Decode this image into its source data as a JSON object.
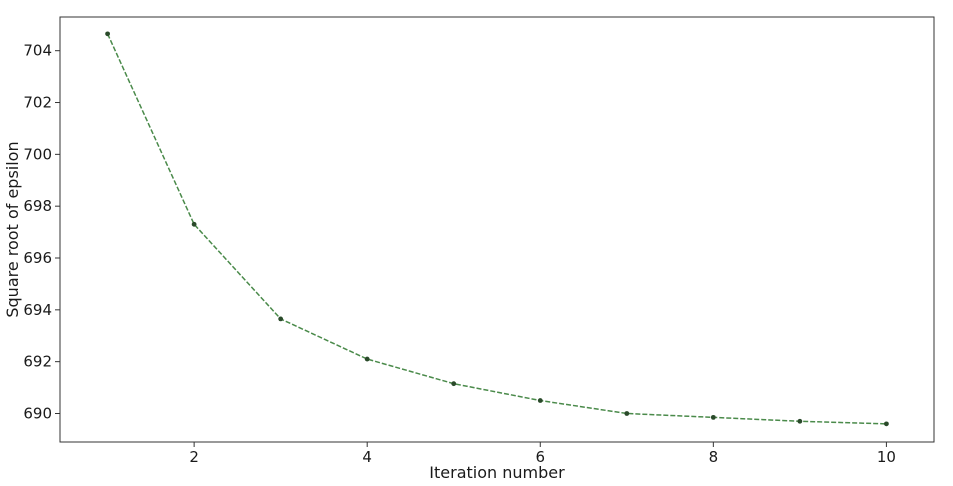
{
  "chart_data": {
    "type": "line",
    "xlabel": "Iteration number",
    "ylabel": "Square root of epsilon",
    "xlim": [
      0.45,
      10.55
    ],
    "ylim": [
      688.9,
      705.3
    ],
    "x_ticks": [
      2,
      4,
      6,
      8,
      10
    ],
    "y_ticks": [
      690,
      692,
      694,
      696,
      698,
      700,
      702,
      704
    ],
    "x_tick_labels": [
      "2",
      "4",
      "6",
      "8",
      "10"
    ],
    "y_tick_labels": [
      "690",
      "692",
      "694",
      "696",
      "698",
      "700",
      "702",
      "704"
    ],
    "grid": false,
    "legend": false,
    "series": [
      {
        "x": [
          1,
          2,
          3,
          4,
          5,
          6,
          7,
          8,
          9,
          10
        ],
        "y": [
          704.65,
          697.3,
          693.65,
          692.1,
          691.15,
          690.5,
          690.0,
          689.85,
          689.7,
          689.6
        ],
        "line_color": "#4a8a4a",
        "marker_color": "#2a4a2a",
        "line_style": "dashed"
      }
    ]
  }
}
